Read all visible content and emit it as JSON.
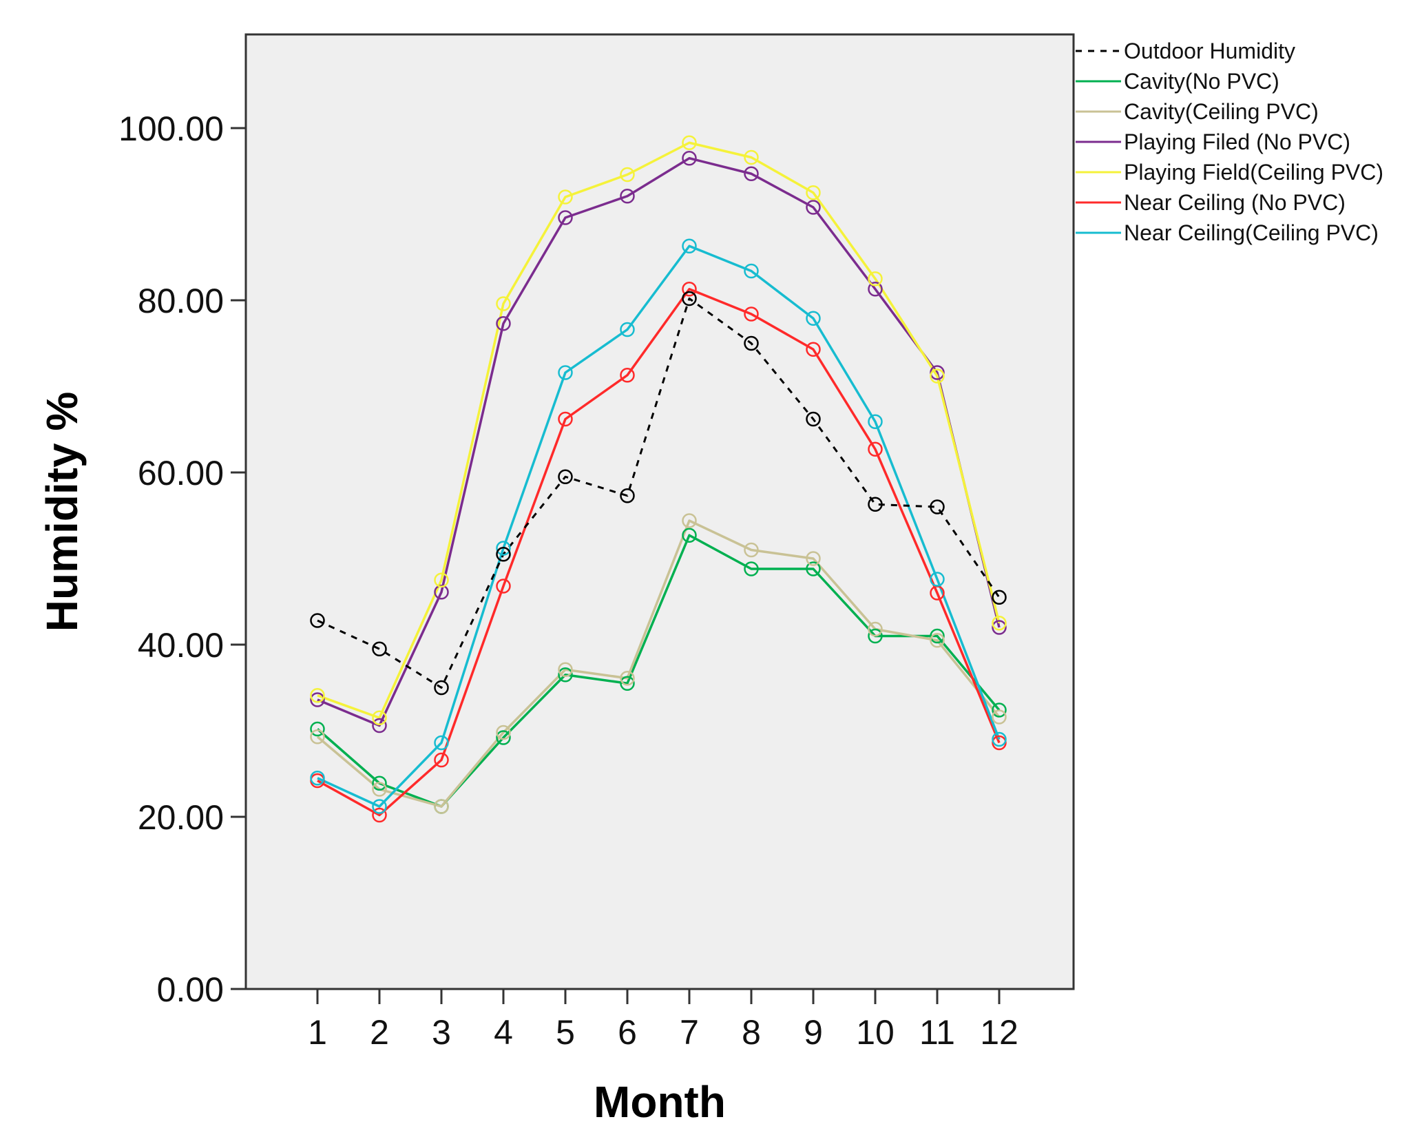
{
  "chart_data": {
    "type": "line",
    "title": "",
    "xlabel": "Month",
    "ylabel": "Humidity %",
    "x": [
      1,
      2,
      3,
      4,
      5,
      6,
      7,
      8,
      9,
      10,
      11,
      12
    ],
    "x_tick_labels": [
      "1",
      "2",
      "3",
      "4",
      "5",
      "6",
      "7",
      "8",
      "9",
      "10",
      "11",
      "12"
    ],
    "ylim": [
      0,
      110
    ],
    "y_ticks": [
      0,
      20,
      40,
      60,
      80,
      100
    ],
    "y_tick_labels": [
      "0.00",
      "20.00",
      "40.00",
      "60.00",
      "80.00",
      "100.00"
    ],
    "plot_background": "#efefef",
    "grid": false,
    "legend_position": "top-right, outside plot",
    "series": [
      {
        "name": "Outdoor Humidity",
        "color": "#000000",
        "dashed": true,
        "values": [
          42.8,
          39.5,
          35.0,
          50.5,
          59.5,
          57.3,
          80.2,
          75.0,
          66.2,
          56.3,
          56.0,
          45.5
        ]
      },
      {
        "name": "Cavity(No PVC)",
        "color": "#00b050",
        "dashed": false,
        "values": [
          30.2,
          23.9,
          21.2,
          29.2,
          36.5,
          35.5,
          52.7,
          48.8,
          48.8,
          41.0,
          41.0,
          32.4
        ]
      },
      {
        "name": "Cavity(Ceiling PVC)",
        "color": "#c9c295",
        "dashed": false,
        "values": [
          29.3,
          23.2,
          21.2,
          29.8,
          37.1,
          36.1,
          54.4,
          51.0,
          50.0,
          41.8,
          40.5,
          31.6
        ]
      },
      {
        "name": "Playing Filed (No PVC)",
        "color": "#7b2c8e",
        "dashed": false,
        "values": [
          33.6,
          30.6,
          46.1,
          77.3,
          89.6,
          92.1,
          96.5,
          94.7,
          90.8,
          81.3,
          71.6,
          42.0
        ]
      },
      {
        "name": "Playing Field(Ceiling PVC)",
        "color": "#f5f23a",
        "dashed": false,
        "values": [
          34.1,
          31.5,
          47.5,
          79.6,
          92.0,
          94.6,
          98.3,
          96.6,
          92.5,
          82.5,
          71.2,
          42.5
        ]
      },
      {
        "name": "Near Ceiling (No PVC)",
        "color": "#ff2a2a",
        "dashed": false,
        "values": [
          24.2,
          20.2,
          26.6,
          46.8,
          66.2,
          71.3,
          81.3,
          78.4,
          74.3,
          62.7,
          46.0,
          28.6
        ]
      },
      {
        "name": "Near Ceiling(Ceiling PVC)",
        "color": "#17bcd0",
        "dashed": false,
        "values": [
          24.5,
          21.2,
          28.6,
          51.2,
          71.6,
          76.6,
          86.3,
          83.4,
          77.9,
          65.9,
          47.6,
          29.0
        ]
      }
    ]
  }
}
